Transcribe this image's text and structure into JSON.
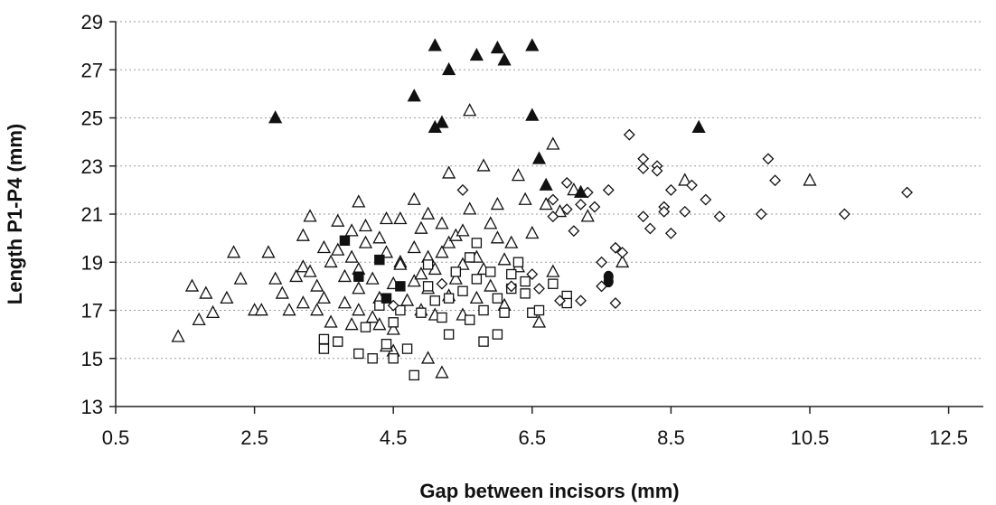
{
  "chart_data": {
    "type": "scatter",
    "xlabel": "Gap between incisors (mm)",
    "ylabel": "Length P1-P4 (mm)",
    "xlim": [
      0.5,
      13.0
    ],
    "ylim": [
      13,
      29
    ],
    "xticks": [
      "0.5",
      "2.5",
      "4.5",
      "6.5",
      "8.5",
      "10.5",
      "12.5"
    ],
    "yticks": [
      "13",
      "15",
      "17",
      "19",
      "21",
      "23",
      "25",
      "27",
      "29"
    ],
    "grid": "horizontal dotted",
    "legend": "none",
    "series": [
      {
        "marker": "open-triangle",
        "points": [
          [
            1.4,
            15.9
          ],
          [
            1.6,
            18.0
          ],
          [
            1.7,
            16.6
          ],
          [
            1.8,
            17.7
          ],
          [
            1.9,
            16.9
          ],
          [
            2.1,
            17.5
          ],
          [
            2.2,
            19.4
          ],
          [
            2.3,
            18.3
          ],
          [
            2.5,
            17.0
          ],
          [
            2.6,
            17.0
          ],
          [
            2.7,
            19.4
          ],
          [
            2.8,
            18.3
          ],
          [
            2.9,
            17.7
          ],
          [
            3.0,
            17.0
          ],
          [
            3.2,
            20.1
          ],
          [
            3.2,
            18.8
          ],
          [
            3.2,
            17.3
          ],
          [
            3.3,
            18.6
          ],
          [
            3.3,
            20.9
          ],
          [
            3.4,
            18.0
          ],
          [
            3.5,
            17.5
          ],
          [
            3.6,
            19.0
          ],
          [
            3.6,
            16.5
          ],
          [
            3.7,
            20.7
          ],
          [
            3.7,
            19.5
          ],
          [
            3.8,
            18.4
          ],
          [
            3.8,
            17.3
          ],
          [
            3.9,
            20.3
          ],
          [
            3.9,
            19.2
          ],
          [
            4.0,
            21.5
          ],
          [
            4.0,
            18.7
          ],
          [
            4.0,
            17.0
          ],
          [
            4.1,
            20.5
          ],
          [
            4.1,
            19.8
          ],
          [
            4.2,
            18.3
          ],
          [
            4.2,
            16.7
          ],
          [
            4.3,
            20.0
          ],
          [
            4.3,
            17.5
          ],
          [
            4.4,
            20.8
          ],
          [
            4.4,
            19.4
          ],
          [
            4.5,
            18.1
          ],
          [
            4.5,
            16.2
          ],
          [
            4.5,
            15.3
          ],
          [
            4.6,
            20.8
          ],
          [
            4.6,
            19.0
          ],
          [
            4.7,
            17.4
          ],
          [
            4.8,
            21.6
          ],
          [
            4.8,
            19.6
          ],
          [
            4.8,
            18.2
          ],
          [
            4.9,
            20.4
          ],
          [
            4.9,
            17.0
          ],
          [
            5.0,
            21.0
          ],
          [
            5.0,
            19.2
          ],
          [
            5.0,
            15.0
          ],
          [
            5.1,
            18.7
          ],
          [
            5.1,
            16.8
          ],
          [
            5.2,
            20.6
          ],
          [
            5.2,
            14.4
          ],
          [
            5.3,
            22.7
          ],
          [
            5.3,
            19.8
          ],
          [
            5.3,
            17.6
          ],
          [
            5.4,
            20.1
          ],
          [
            5.5,
            18.9
          ],
          [
            5.5,
            16.8
          ],
          [
            5.6,
            25.3
          ],
          [
            5.6,
            21.2
          ],
          [
            5.7,
            19.2
          ],
          [
            5.7,
            17.5
          ],
          [
            5.8,
            23.0
          ],
          [
            5.9,
            20.6
          ],
          [
            5.9,
            18.0
          ],
          [
            6.0,
            21.4
          ],
          [
            6.0,
            20.0
          ],
          [
            6.1,
            17.2
          ],
          [
            6.2,
            19.8
          ],
          [
            6.3,
            22.6
          ],
          [
            6.3,
            18.8
          ],
          [
            6.4,
            21.6
          ],
          [
            6.5,
            20.2
          ],
          [
            6.6,
            16.5
          ],
          [
            6.7,
            21.4
          ],
          [
            6.8,
            23.9
          ],
          [
            6.8,
            18.6
          ],
          [
            6.9,
            21.1
          ],
          [
            7.1,
            22.0
          ],
          [
            7.3,
            20.9
          ],
          [
            7.8,
            19.0
          ],
          [
            8.7,
            22.4
          ],
          [
            10.5,
            22.4
          ],
          [
            3.1,
            18.4
          ],
          [
            3.5,
            19.6
          ],
          [
            4.0,
            17.9
          ],
          [
            4.3,
            16.4
          ],
          [
            4.6,
            18.9
          ],
          [
            4.9,
            18.5
          ],
          [
            5.2,
            19.4
          ],
          [
            5.4,
            18.3
          ],
          [
            5.8,
            18.7
          ],
          [
            6.1,
            19.1
          ],
          [
            3.4,
            17.0
          ],
          [
            3.9,
            16.4
          ],
          [
            4.4,
            15.5
          ],
          [
            5.0,
            17.9
          ],
          [
            5.5,
            20.3
          ]
        ]
      },
      {
        "marker": "open-square",
        "points": [
          [
            3.5,
            15.8
          ],
          [
            3.5,
            15.4
          ],
          [
            3.7,
            15.7
          ],
          [
            4.0,
            15.2
          ],
          [
            4.1,
            16.3
          ],
          [
            4.2,
            15.0
          ],
          [
            4.3,
            17.2
          ],
          [
            4.4,
            15.6
          ],
          [
            4.5,
            16.5
          ],
          [
            4.5,
            15.0
          ],
          [
            4.7,
            15.4
          ],
          [
            4.8,
            14.3
          ],
          [
            4.9,
            16.9
          ],
          [
            5.0,
            18.0
          ],
          [
            5.1,
            17.4
          ],
          [
            5.2,
            16.7
          ],
          [
            5.3,
            16.0
          ],
          [
            5.4,
            18.6
          ],
          [
            5.5,
            17.8
          ],
          [
            5.6,
            16.6
          ],
          [
            5.7,
            18.3
          ],
          [
            5.7,
            19.8
          ],
          [
            5.8,
            17.0
          ],
          [
            5.8,
            15.7
          ],
          [
            5.9,
            18.6
          ],
          [
            6.0,
            17.5
          ],
          [
            6.0,
            16.0
          ],
          [
            6.1,
            16.9
          ],
          [
            6.2,
            18.5
          ],
          [
            6.3,
            19.0
          ],
          [
            6.4,
            18.2
          ],
          [
            6.4,
            17.7
          ],
          [
            6.5,
            16.9
          ],
          [
            6.6,
            17.0
          ],
          [
            6.8,
            18.1
          ],
          [
            7.0,
            17.6
          ],
          [
            7.0,
            17.3
          ],
          [
            5.0,
            18.9
          ],
          [
            5.3,
            17.5
          ],
          [
            5.6,
            19.2
          ],
          [
            6.2,
            17.9
          ],
          [
            4.6,
            17.0
          ]
        ]
      },
      {
        "marker": "open-diamond",
        "points": [
          [
            4.5,
            17.2
          ],
          [
            5.2,
            18.1
          ],
          [
            5.5,
            22.0
          ],
          [
            6.2,
            18.0
          ],
          [
            6.5,
            18.5
          ],
          [
            6.6,
            17.9
          ],
          [
            6.8,
            21.6
          ],
          [
            6.9,
            17.4
          ],
          [
            7.0,
            22.3
          ],
          [
            7.0,
            21.2
          ],
          [
            7.1,
            20.3
          ],
          [
            7.2,
            17.4
          ],
          [
            7.3,
            21.9
          ],
          [
            7.4,
            21.3
          ],
          [
            7.5,
            18.0
          ],
          [
            7.5,
            19.0
          ],
          [
            7.6,
            22.0
          ],
          [
            7.7,
            19.6
          ],
          [
            7.7,
            17.3
          ],
          [
            7.8,
            19.4
          ],
          [
            7.9,
            24.3
          ],
          [
            8.1,
            23.3
          ],
          [
            8.1,
            20.9
          ],
          [
            8.2,
            20.4
          ],
          [
            8.3,
            23.0
          ],
          [
            8.3,
            22.8
          ],
          [
            8.4,
            21.3
          ],
          [
            8.4,
            21.1
          ],
          [
            8.5,
            22.0
          ],
          [
            8.5,
            20.2
          ],
          [
            8.7,
            21.1
          ],
          [
            8.8,
            22.2
          ],
          [
            9.0,
            21.6
          ],
          [
            9.2,
            20.9
          ],
          [
            9.8,
            21.0
          ],
          [
            9.9,
            23.3
          ],
          [
            10.0,
            22.4
          ],
          [
            11.0,
            21.0
          ],
          [
            11.9,
            21.9
          ],
          [
            6.8,
            20.9
          ],
          [
            7.2,
            21.4
          ],
          [
            8.1,
            22.9
          ]
        ]
      },
      {
        "marker": "filled-triangle",
        "points": [
          [
            2.8,
            25.0
          ],
          [
            4.8,
            25.9
          ],
          [
            5.1,
            28.0
          ],
          [
            5.1,
            24.6
          ],
          [
            5.2,
            24.8
          ],
          [
            5.3,
            27.0
          ],
          [
            5.7,
            27.6
          ],
          [
            6.0,
            27.9
          ],
          [
            6.1,
            27.4
          ],
          [
            6.5,
            28.0
          ],
          [
            6.5,
            25.1
          ],
          [
            6.6,
            23.3
          ],
          [
            6.7,
            22.2
          ],
          [
            7.2,
            21.9
          ],
          [
            8.9,
            24.6
          ]
        ]
      },
      {
        "marker": "filled-square",
        "points": [
          [
            3.8,
            19.9
          ],
          [
            4.0,
            18.4
          ],
          [
            4.3,
            19.1
          ],
          [
            4.4,
            17.5
          ],
          [
            4.6,
            18.0
          ]
        ]
      },
      {
        "marker": "filled-circle",
        "points": [
          [
            7.6,
            18.2
          ],
          [
            7.6,
            18.4
          ]
        ]
      }
    ]
  }
}
